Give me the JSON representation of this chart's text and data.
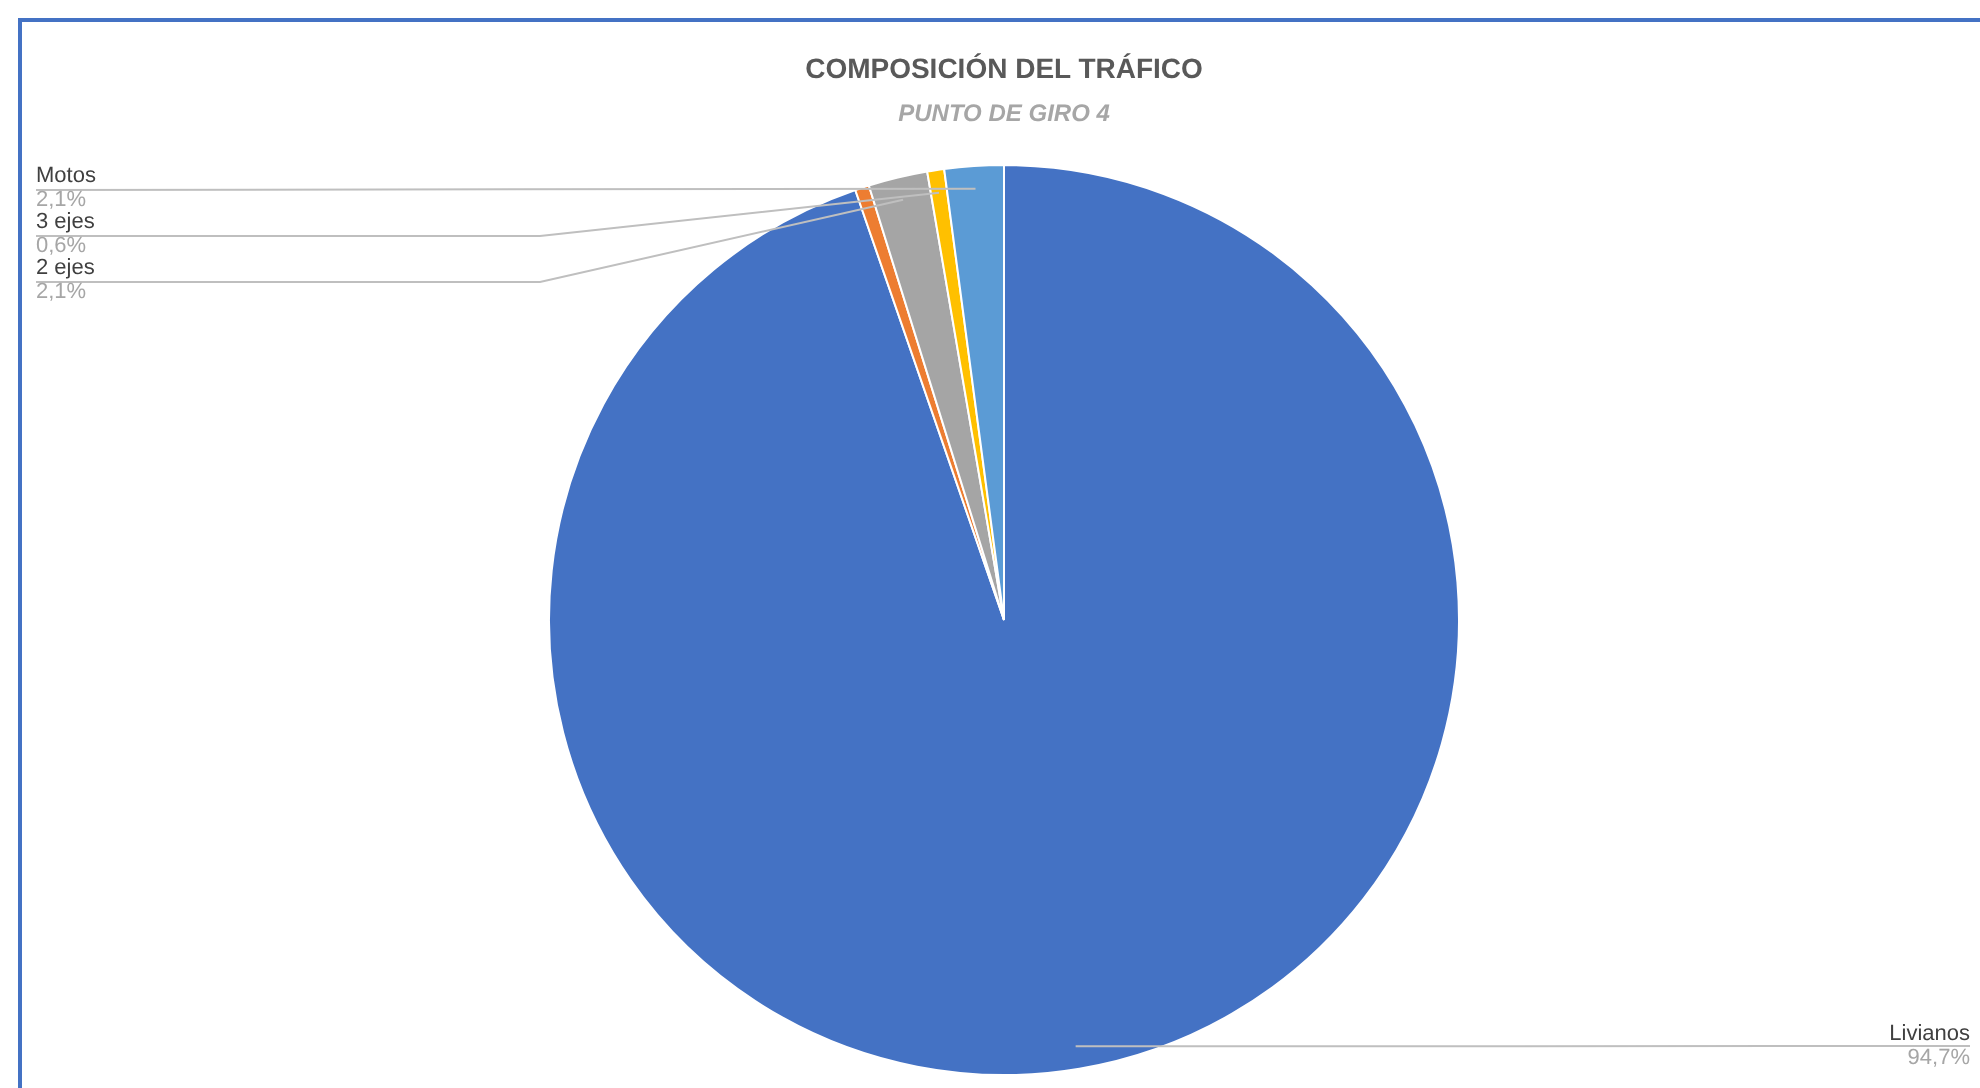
{
  "chart_data": {
    "type": "pie",
    "title": "COMPOSICIÓN DEL TRÁFICO",
    "subtitle": "PUNTO DE GIRO 4",
    "categories": [
      "Livianos",
      null,
      "2 ejes",
      "3 ejes",
      "Motos"
    ],
    "values": [
      94.7,
      0.5,
      2.1,
      0.6,
      2.1
    ],
    "value_labels": [
      "94,7%",
      null,
      "2,1%",
      "0,6%",
      "2,1%"
    ],
    "colors": [
      "#4472c4",
      "#ed7d31",
      "#a5a5a5",
      "#ffc000",
      "#5b9bd5"
    ],
    "legend": false
  }
}
